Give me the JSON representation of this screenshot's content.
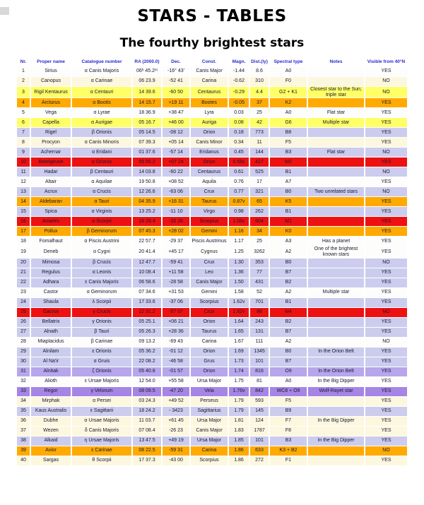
{
  "page": {
    "title": "STARS - TABLES",
    "subtitle": "The fourthy brightest stars"
  },
  "table": {
    "headers": [
      "Nr.",
      "Proper name",
      "Catalogue number",
      "RA (2000.0)",
      "Dec.",
      "Const.",
      "Magn.",
      "Dist.(ly)",
      "Spectral type",
      "Notes",
      "Visible from 40°N"
    ],
    "row_fields": [
      "nr",
      "name",
      "catalogue",
      "ra",
      "dec",
      "constellation",
      "magnitude",
      "distance_ly",
      "spectral_type",
      "notes",
      "visible_from_40N",
      "color_class"
    ],
    "header_text_color": "#2a2acc",
    "row_colors": {
      "A": "#fdfdfc",
      "B": "#ccccee",
      "F": "#fcf7df",
      "G": "#ffff66",
      "K": "#ffaa00",
      "M": "#ee1111",
      "O": "#b7a6ec",
      "W": "#a585e5"
    },
    "rows": [
      [
        "1",
        "Sirius",
        "α Canis Majoris",
        "06ʰ 45.2ᵐ",
        "-16° 43′",
        "Canis Major",
        "-1.44",
        "8.6",
        "A0",
        "",
        "YES",
        "A"
      ],
      [
        "2",
        "Canopus",
        "α Carinae",
        "06 23.9",
        "-52 41",
        "Carina",
        "-0.62",
        "310",
        "F0",
        "",
        "NO",
        "F"
      ],
      [
        "3",
        "Rigil Kentaurus",
        "α Centauri",
        "14 39.6",
        "-60 50",
        "Centaurus",
        "-0.29",
        "4.4",
        "G2 + K1",
        "Closest star to the Sun; triple star",
        "NO",
        "G"
      ],
      [
        "4",
        "Arcturus",
        "α Bootis",
        "14 15.7",
        "+19 11",
        "Bootes",
        "-0.05",
        "37",
        "K2",
        "",
        "YES",
        "K"
      ],
      [
        "5",
        "Vega",
        "α Lyrae",
        "18 36.9",
        "+38 47",
        "Lyra",
        "0.03",
        "25",
        "A0",
        "Flat star",
        "YES",
        "A"
      ],
      [
        "6",
        "Capella",
        "α Aurigae",
        "05 16.7",
        "+46 00",
        "Auriga",
        "0.08",
        "42",
        "G6",
        "Multiple star",
        "YES",
        "G"
      ],
      [
        "7",
        "Rigel",
        "β Orionis",
        "05 14.5",
        "-08 12",
        "Orion",
        "0.18",
        "773",
        "B8",
        "",
        "YES",
        "B"
      ],
      [
        "8",
        "Procyon",
        "α Canis Minoris",
        "07 39.3",
        "+05 14",
        "Canis Minor",
        "0.34",
        "11",
        "F5",
        "",
        "YES",
        "F"
      ],
      [
        "9",
        "Achernar",
        "α Eridani",
        "01 37.6",
        "-57 14",
        "Eridanus",
        "0.45",
        "144",
        "B3",
        "Flat star",
        "NO",
        "B"
      ],
      [
        "10",
        "Betelgeuse",
        "α Orionis",
        "05 55.2",
        "+07 24",
        "Orion",
        "0.58v",
        "427",
        "M2",
        "",
        "YES",
        "M"
      ],
      [
        "11",
        "Hadar",
        "β Centauri",
        "14 03.8",
        "-60 22",
        "Centaurus",
        "0.61",
        "525",
        "B1",
        "",
        "NO",
        "B"
      ],
      [
        "12",
        "Altair",
        "α Aquilae",
        "19 50.8",
        "+08 52",
        "Aquila",
        "0.76",
        "17",
        "A7",
        "",
        "YES",
        "A"
      ],
      [
        "13",
        "Acrux",
        "α Crucis",
        "12 26.6",
        "-63 06",
        "Crux",
        "0.77",
        "321",
        "B0",
        "Two unrelated stars",
        "NO",
        "B"
      ],
      [
        "14",
        "Aldebaran",
        "α Tauri",
        "04 35.9",
        "+16 31",
        "Taurus",
        "0.87v",
        "65",
        "K5",
        "",
        "YES",
        "K"
      ],
      [
        "15",
        "Spica",
        "α Virginis",
        "13 25.2",
        "-11 10",
        "Virgo",
        "0.98",
        "262",
        "B1",
        "",
        "YES",
        "B"
      ],
      [
        "16",
        "Antares",
        "α Scorpii",
        "16 29.4",
        "-26 26",
        "Scorpius",
        "1.06v",
        "604",
        "M1",
        "",
        "YES",
        "M"
      ],
      [
        "17",
        "Pollux",
        "β Geminorum",
        "07 45.3",
        "+28 02",
        "Gemini",
        "1.16",
        "34",
        "K0",
        "",
        "YES",
        "K"
      ],
      [
        "18",
        "Fomalhaut",
        "α Piscis Austrini",
        "22 57.7",
        "-29 37",
        "Piscis Austrinus",
        "1.17",
        "25",
        "A3",
        "Has a planet",
        "YES",
        "A"
      ],
      [
        "19",
        "Deneb",
        "α Cygni",
        "20 41.4",
        "+45 17",
        "Cygnus",
        "1.25",
        "3262",
        "A2",
        "One of the brightest known stars",
        "YES",
        "A"
      ],
      [
        "20",
        "Mimosa",
        "β Crucis",
        "12 47.7",
        "-59 41",
        "Crux",
        "1.30",
        "353",
        "B0",
        "",
        "NO",
        "B"
      ],
      [
        "21",
        "Regulus",
        "α Leonis",
        "10 08.4",
        "+11 58",
        "Leo",
        "1.36",
        "77",
        "B7",
        "",
        "YES",
        "B"
      ],
      [
        "22",
        "Adhara",
        "ε Canis Majoris",
        "06 58.6",
        "-28 58",
        "Canis Major",
        "1.50",
        "431",
        "B2",
        "",
        "YES",
        "B"
      ],
      [
        "23",
        "Castor",
        "α Geminorum",
        "07 34.6",
        "+31 53",
        "Gemini",
        "1.58",
        "52",
        "A2",
        "Multiple star",
        "YES",
        "A"
      ],
      [
        "24",
        "Shaula",
        "λ Scorpii",
        "17 33.6",
        "-37 06",
        "Scorpius",
        "1.62v",
        "701",
        "B1",
        "",
        "YES",
        "B"
      ],
      [
        "25",
        "Gacrux",
        "γ Crucis",
        "12 31.2",
        "-57 07",
        "Crux",
        "1.62v",
        "88",
        "M4",
        "",
        "NO",
        "M"
      ],
      [
        "26",
        "Bellatrix",
        "γ Orionis",
        "05 25.1",
        "+06 21",
        "Orion",
        "1.64",
        "243",
        "B2",
        "",
        "YES",
        "B"
      ],
      [
        "27",
        "Alnath",
        "β Tauri",
        "05 26.3",
        "+28 36",
        "Taurus",
        "1.65",
        "131",
        "B7",
        "",
        "YES",
        "B"
      ],
      [
        "28",
        "Miaplacidus",
        "β Carinae",
        "09 13.2",
        "-69 43",
        "Carina",
        "1.67",
        "111",
        "A2",
        "",
        "NO",
        "A"
      ],
      [
        "29",
        "Alnilam",
        "ε Orionis",
        "05 36.2",
        "-01 12",
        "Orion",
        "1.69",
        "1345",
        "B0",
        "In the Orion Belt",
        "YES",
        "B"
      ],
      [
        "30",
        "Al Na'ir",
        "α Gruis",
        "22 08.2",
        "-46 58",
        "Grus",
        "1.73",
        "101",
        "B7",
        "",
        "YES",
        "B"
      ],
      [
        "31",
        "Alnitak",
        "ζ Orionis",
        "05 40.8",
        "-01 57",
        "Orion",
        "1.74",
        "816",
        "O9",
        "In the Orion Belt",
        "YES",
        "O"
      ],
      [
        "32",
        "Alioth",
        "ε Ursae Majoris",
        "12 54.0",
        "+55 58",
        "Ursa Major",
        "1.75",
        "81",
        "A0",
        "In the Big Dipper",
        "YES",
        "A"
      ],
      [
        "33",
        "Regor",
        "γ Velorum",
        "08 09.5",
        "-47 20",
        "Vela",
        "1.76v",
        "842",
        "WC8 + O9",
        "Wolf-Rayet star",
        "YES",
        "W"
      ],
      [
        "34",
        "Mirphak",
        "α Persei",
        "03 24.3",
        "+49 52",
        "Perseus",
        "1.79",
        "593",
        "F5",
        "",
        "YES",
        "F"
      ],
      [
        "35",
        "Kaus Australis",
        "ε Sagittarii",
        "18 24.2",
        "- 3423",
        "Sagittarius",
        "1.79",
        "145",
        "B9",
        "",
        "YES",
        "B"
      ],
      [
        "36",
        "Dubhe",
        "α Ursae Majoris",
        "11 03.7",
        "+61 45",
        "Ursa Major",
        "1.81",
        "124",
        "F7",
        "In the Big Dipper",
        "YES",
        "F"
      ],
      [
        "37",
        "Wezen",
        "δ Canis Majoris",
        "07 08.4",
        "-26 23",
        "Canis Major",
        "1.83",
        "1787",
        "F8",
        "",
        "YES",
        "F"
      ],
      [
        "38",
        "Alkaid",
        "η Ursae Majoris",
        "13 47.5",
        "+49 19",
        "Ursa Major",
        "1.85",
        "101",
        "B3",
        "In the Big Dipper",
        "YES",
        "B"
      ],
      [
        "39",
        "Avior",
        "ε Carinae",
        "08 22.5",
        "-59 31",
        "Carina",
        "1.86",
        "633",
        "K3 + B2",
        "",
        "NO",
        "K"
      ],
      [
        "40",
        "Sargas",
        "θ Scorpii",
        "17 37.3",
        "-43 00",
        "Scorpius",
        "1.86",
        "272",
        "F1",
        "",
        "YES",
        "F"
      ]
    ]
  }
}
